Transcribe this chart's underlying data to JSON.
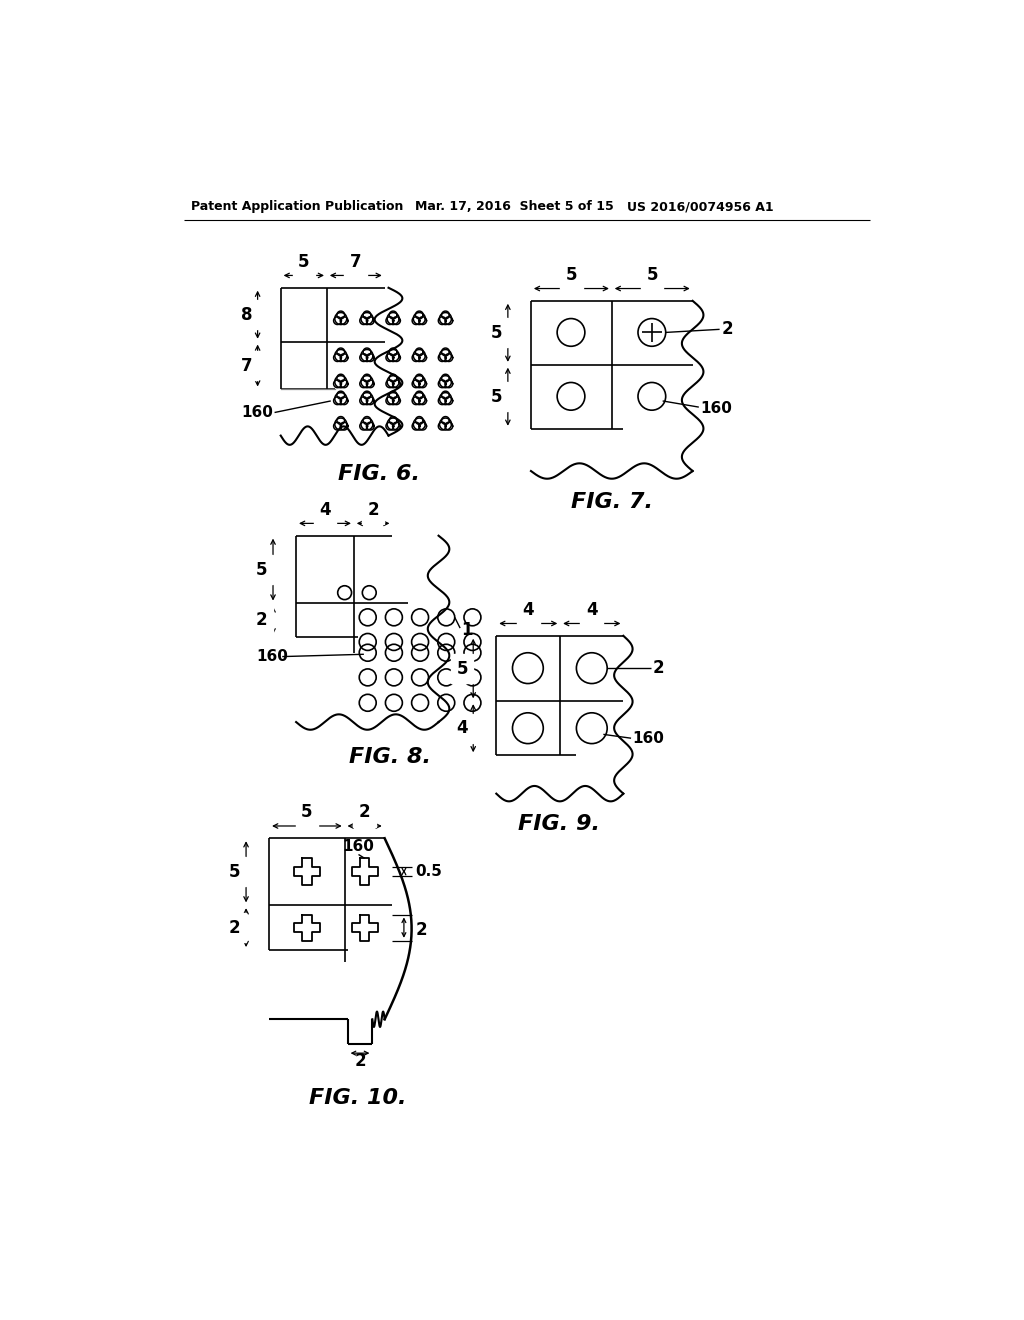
{
  "header_left": "Patent Application Publication",
  "header_mid": "Mar. 17, 2016  Sheet 5 of 15",
  "header_right": "US 2016/0074956 A1",
  "bg_color": "#ffffff",
  "fig6_title": "FIG. 6.",
  "fig7_title": "FIG. 7.",
  "fig8_title": "FIG. 8.",
  "fig9_title": "FIG. 9.",
  "fig10_title": "FIG. 10."
}
